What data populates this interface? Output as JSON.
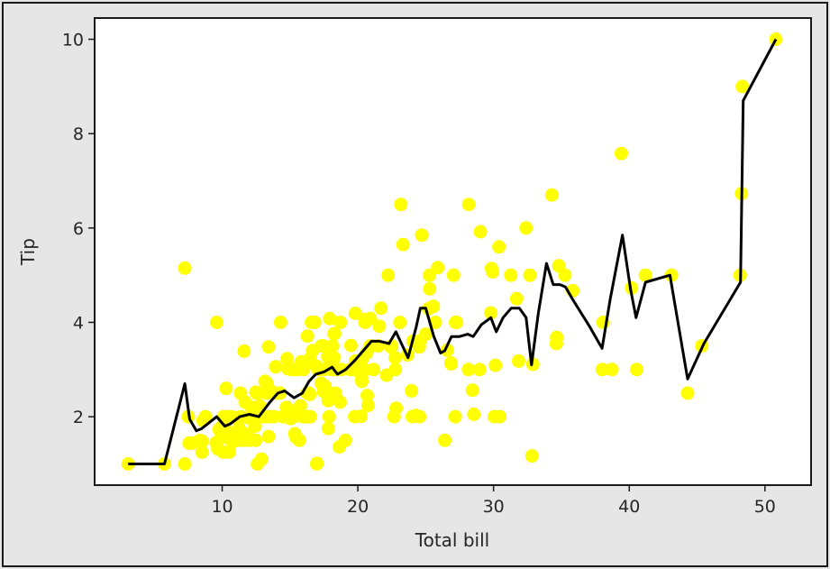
{
  "chart_data": {
    "type": "scatter",
    "title": "",
    "xlabel": "Total bill",
    "ylabel": "Tip",
    "xlim": [
      0.6,
      53.4
    ],
    "ylim": [
      0.55,
      10.45
    ],
    "xticks": [
      10,
      20,
      30,
      40,
      50
    ],
    "yticks": [
      2,
      4,
      6,
      8,
      10
    ],
    "grid": false,
    "colors": {
      "points": "#ffff00",
      "line": "#000000",
      "axes": "#1a1a1a"
    },
    "series": [
      {
        "type": "scatter",
        "points": [
          [
            3.07,
            1.0
          ],
          [
            5.75,
            1.0
          ],
          [
            7.25,
            1.0
          ],
          [
            7.25,
            5.15
          ],
          [
            7.51,
            2.0
          ],
          [
            7.56,
            1.44
          ],
          [
            7.74,
            1.44
          ],
          [
            8.35,
            1.5
          ],
          [
            8.51,
            1.25
          ],
          [
            8.52,
            1.48
          ],
          [
            8.58,
            1.92
          ],
          [
            8.77,
            2.0
          ],
          [
            9.55,
            1.45
          ],
          [
            9.6,
            4.0
          ],
          [
            9.68,
            1.32
          ],
          [
            9.78,
            1.73
          ],
          [
            9.94,
            1.56
          ],
          [
            10.07,
            1.25
          ],
          [
            10.07,
            1.83
          ],
          [
            10.09,
            2.0
          ],
          [
            10.27,
            1.71
          ],
          [
            10.29,
            2.6
          ],
          [
            10.33,
            1.67
          ],
          [
            10.34,
            1.66
          ],
          [
            10.34,
            2.0
          ],
          [
            10.51,
            1.25
          ],
          [
            10.59,
            1.61
          ],
          [
            10.63,
            2.0
          ],
          [
            10.65,
            1.5
          ],
          [
            10.77,
            1.47
          ],
          [
            11.02,
            1.98
          ],
          [
            11.17,
            1.5
          ],
          [
            11.24,
            1.76
          ],
          [
            11.35,
            2.5
          ],
          [
            11.38,
            2.0
          ],
          [
            11.59,
            1.5
          ],
          [
            11.61,
            3.39
          ],
          [
            11.69,
            2.31
          ],
          [
            11.87,
            1.63
          ],
          [
            12.02,
            1.97
          ],
          [
            12.03,
            1.5
          ],
          [
            12.16,
            2.2
          ],
          [
            12.26,
            2.0
          ],
          [
            12.43,
            1.8
          ],
          [
            12.46,
            1.5
          ],
          [
            12.48,
            2.52
          ],
          [
            12.54,
            2.5
          ],
          [
            12.6,
            1.0
          ],
          [
            12.66,
            2.5
          ],
          [
            12.69,
            2.0
          ],
          [
            12.74,
            2.01
          ],
          [
            12.76,
            2.23
          ],
          [
            12.9,
            1.1
          ],
          [
            13.0,
            2.0
          ],
          [
            13.03,
            2.0
          ],
          [
            13.13,
            2.0
          ],
          [
            13.16,
            2.75
          ],
          [
            13.27,
            2.5
          ],
          [
            13.28,
            2.72
          ],
          [
            13.39,
            2.61
          ],
          [
            13.42,
            1.58
          ],
          [
            13.42,
            3.48
          ],
          [
            13.51,
            2.0
          ],
          [
            13.81,
            2.0
          ],
          [
            13.94,
            3.06
          ],
          [
            14.07,
            2.5
          ],
          [
            14.26,
            2.5
          ],
          [
            14.31,
            4.0
          ],
          [
            14.48,
            2.0
          ],
          [
            14.52,
            2.0
          ],
          [
            14.73,
            2.2
          ],
          [
            14.78,
            3.23
          ],
          [
            14.83,
            3.02
          ],
          [
            15.01,
            2.09
          ],
          [
            15.04,
            1.96
          ],
          [
            15.06,
            3.0
          ],
          [
            15.36,
            1.64
          ],
          [
            15.38,
            3.0
          ],
          [
            15.42,
            1.57
          ],
          [
            15.48,
            2.02
          ],
          [
            15.53,
            3.0
          ],
          [
            15.69,
            1.5
          ],
          [
            15.77,
            2.23
          ],
          [
            15.81,
            3.16
          ],
          [
            15.95,
            2.0
          ],
          [
            15.98,
            3.0
          ],
          [
            16.0,
            2.0
          ],
          [
            16.21,
            2.0
          ],
          [
            16.27,
            2.5
          ],
          [
            16.29,
            3.71
          ],
          [
            16.31,
            2.0
          ],
          [
            16.4,
            2.5
          ],
          [
            16.45,
            2.47
          ],
          [
            16.47,
            3.23
          ],
          [
            16.49,
            2.0
          ],
          [
            16.58,
            4.0
          ],
          [
            16.66,
            3.4
          ],
          [
            16.82,
            4.0
          ],
          [
            16.93,
            3.07
          ],
          [
            16.97,
            1.0
          ],
          [
            16.99,
            1.01
          ],
          [
            17.07,
            3.0
          ],
          [
            17.29,
            2.71
          ],
          [
            17.31,
            3.5
          ],
          [
            17.46,
            2.54
          ],
          [
            17.47,
            3.5
          ],
          [
            17.51,
            3.0
          ],
          [
            17.59,
            2.64
          ],
          [
            17.78,
            3.27
          ],
          [
            17.81,
            2.34
          ],
          [
            17.82,
            1.75
          ],
          [
            17.89,
            2.0
          ],
          [
            17.92,
            4.08
          ],
          [
            18.04,
            3.0
          ],
          [
            18.15,
            3.5
          ],
          [
            18.24,
            3.76
          ],
          [
            18.26,
            3.25
          ],
          [
            18.29,
            3.76
          ],
          [
            18.29,
            3.0
          ],
          [
            18.35,
            2.5
          ],
          [
            18.43,
            3.0
          ],
          [
            18.64,
            1.36
          ],
          [
            18.69,
            2.31
          ],
          [
            18.71,
            4.0
          ],
          [
            18.78,
            3.0
          ],
          [
            19.08,
            1.5
          ],
          [
            19.44,
            3.0
          ],
          [
            19.49,
            3.51
          ],
          [
            19.65,
            3.0
          ],
          [
            19.77,
            2.0
          ],
          [
            19.81,
            4.19
          ],
          [
            19.82,
            3.18
          ],
          [
            20.08,
            3.15
          ],
          [
            20.23,
            2.01
          ],
          [
            20.27,
            2.83
          ],
          [
            20.29,
            2.75
          ],
          [
            20.29,
            3.21
          ],
          [
            20.45,
            3.0
          ],
          [
            20.49,
            4.06
          ],
          [
            20.53,
            4.0
          ],
          [
            20.65,
            3.35
          ],
          [
            20.69,
            2.45
          ],
          [
            20.76,
            2.24
          ],
          [
            20.9,
            3.5
          ],
          [
            20.92,
            4.08
          ],
          [
            21.01,
            3.5
          ],
          [
            21.16,
            3.0
          ],
          [
            21.5,
            3.5
          ],
          [
            21.58,
            3.92
          ],
          [
            21.7,
            4.3
          ],
          [
            22.12,
            2.88
          ],
          [
            22.23,
            5.0
          ],
          [
            22.42,
            3.48
          ],
          [
            22.49,
            3.5
          ],
          [
            22.67,
            2.0
          ],
          [
            22.75,
            3.25
          ],
          [
            22.76,
            3.0
          ],
          [
            22.82,
            2.18
          ],
          [
            23.1,
            4.0
          ],
          [
            23.17,
            6.5
          ],
          [
            23.33,
            5.65
          ],
          [
            23.68,
            3.31
          ],
          [
            23.95,
            2.55
          ],
          [
            24.01,
            2.0
          ],
          [
            24.06,
            3.6
          ],
          [
            24.27,
            2.03
          ],
          [
            24.52,
            3.48
          ],
          [
            24.55,
            2.0
          ],
          [
            24.59,
            3.61
          ],
          [
            24.71,
            5.85
          ],
          [
            25.0,
            3.75
          ],
          [
            25.21,
            4.29
          ],
          [
            25.28,
            5.0
          ],
          [
            25.29,
            4.71
          ],
          [
            25.56,
            4.34
          ],
          [
            25.71,
            4.0
          ],
          [
            25.89,
            5.16
          ],
          [
            26.41,
            1.5
          ],
          [
            26.59,
            3.41
          ],
          [
            26.86,
            3.14
          ],
          [
            26.88,
            3.12
          ],
          [
            27.05,
            5.0
          ],
          [
            27.18,
            2.0
          ],
          [
            27.2,
            4.0
          ],
          [
            27.28,
            4.0
          ],
          [
            28.15,
            3.0
          ],
          [
            28.17,
            6.5
          ],
          [
            28.44,
            2.56
          ],
          [
            28.55,
            2.05
          ],
          [
            28.97,
            3.0
          ],
          [
            29.03,
            5.92
          ],
          [
            29.8,
            4.2
          ],
          [
            29.85,
            5.14
          ],
          [
            29.93,
            5.07
          ],
          [
            30.06,
            2.0
          ],
          [
            30.14,
            3.09
          ],
          [
            30.4,
            5.6
          ],
          [
            30.46,
            2.0
          ],
          [
            31.27,
            5.0
          ],
          [
            31.71,
            4.5
          ],
          [
            31.85,
            3.18
          ],
          [
            32.4,
            6.0
          ],
          [
            32.68,
            5.0
          ],
          [
            32.83,
            1.17
          ],
          [
            32.9,
            3.11
          ],
          [
            34.3,
            6.7
          ],
          [
            34.63,
            3.55
          ],
          [
            34.65,
            3.68
          ],
          [
            34.81,
            5.2
          ],
          [
            35.26,
            5.0
          ],
          [
            35.83,
            4.67
          ],
          [
            38.01,
            3.0
          ],
          [
            38.07,
            4.0
          ],
          [
            38.73,
            3.0
          ],
          [
            39.42,
            7.58
          ],
          [
            40.17,
            4.73
          ],
          [
            40.55,
            3.0
          ],
          [
            41.19,
            5.0
          ],
          [
            43.11,
            5.0
          ],
          [
            44.3,
            2.5
          ],
          [
            45.35,
            3.5
          ],
          [
            48.17,
            5.0
          ],
          [
            48.27,
            6.73
          ],
          [
            48.33,
            9.0
          ],
          [
            50.81,
            10.0
          ]
        ]
      },
      {
        "type": "line",
        "points": [
          [
            3.07,
            1.0
          ],
          [
            5.75,
            1.0
          ],
          [
            7.25,
            2.7
          ],
          [
            7.6,
            1.95
          ],
          [
            8.1,
            1.7
          ],
          [
            8.5,
            1.75
          ],
          [
            9.6,
            2.0
          ],
          [
            10.2,
            1.8
          ],
          [
            10.6,
            1.85
          ],
          [
            11.3,
            2.0
          ],
          [
            12.0,
            2.05
          ],
          [
            12.7,
            2.0
          ],
          [
            13.5,
            2.3
          ],
          [
            14.1,
            2.5
          ],
          [
            14.6,
            2.55
          ],
          [
            15.3,
            2.4
          ],
          [
            15.9,
            2.5
          ],
          [
            16.4,
            2.75
          ],
          [
            16.9,
            2.9
          ],
          [
            17.5,
            2.95
          ],
          [
            18.1,
            3.05
          ],
          [
            18.5,
            2.9
          ],
          [
            19.1,
            3.0
          ],
          [
            19.8,
            3.2
          ],
          [
            20.4,
            3.4
          ],
          [
            21.0,
            3.6
          ],
          [
            21.6,
            3.6
          ],
          [
            22.3,
            3.55
          ],
          [
            22.8,
            3.8
          ],
          [
            23.7,
            3.25
          ],
          [
            24.3,
            3.9
          ],
          [
            24.6,
            4.3
          ],
          [
            25.0,
            4.3
          ],
          [
            25.6,
            3.7
          ],
          [
            26.1,
            3.35
          ],
          [
            26.4,
            3.4
          ],
          [
            26.9,
            3.7
          ],
          [
            27.5,
            3.7
          ],
          [
            28.1,
            3.75
          ],
          [
            28.5,
            3.7
          ],
          [
            29.1,
            3.95
          ],
          [
            29.8,
            4.1
          ],
          [
            30.2,
            3.8
          ],
          [
            30.7,
            4.1
          ],
          [
            31.3,
            4.3
          ],
          [
            31.9,
            4.3
          ],
          [
            32.4,
            4.1
          ],
          [
            32.8,
            3.1
          ],
          [
            33.3,
            4.2
          ],
          [
            33.9,
            5.25
          ],
          [
            34.4,
            4.8
          ],
          [
            34.9,
            4.8
          ],
          [
            35.3,
            4.75
          ],
          [
            35.8,
            4.5
          ],
          [
            37.1,
            3.9
          ],
          [
            38.0,
            3.45
          ],
          [
            38.6,
            4.5
          ],
          [
            39.5,
            5.85
          ],
          [
            40.1,
            4.7
          ],
          [
            40.5,
            4.1
          ],
          [
            41.2,
            4.85
          ],
          [
            43.0,
            5.0
          ],
          [
            44.3,
            2.8
          ],
          [
            45.5,
            3.55
          ],
          [
            48.2,
            4.85
          ],
          [
            48.4,
            8.7
          ],
          [
            50.81,
            10.0
          ]
        ]
      }
    ]
  }
}
